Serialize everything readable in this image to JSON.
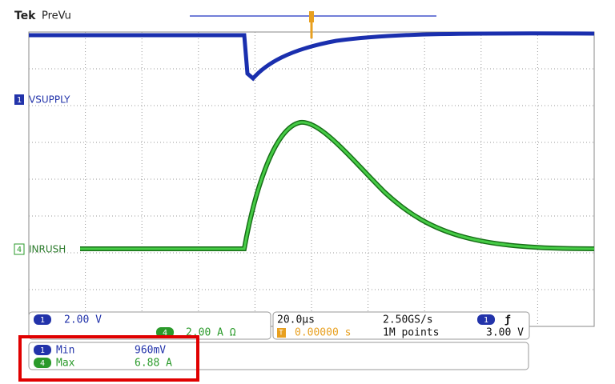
{
  "header": {
    "brand": "Tek",
    "mode": "PreVu"
  },
  "channels": [
    {
      "number": "1",
      "label": "VSUPPLY",
      "scale": "2.00 V"
    },
    {
      "number": "4",
      "label": "INRUSH",
      "scale": "2.00 A Ω"
    }
  ],
  "timebase": {
    "scale": "20.0µs",
    "sample_rate": "2.50GS/s",
    "trigger_marker": "T",
    "position": "0.00000 s",
    "record_length": "1M points"
  },
  "trigger": {
    "channel": "1",
    "slope": "ƒ",
    "level": "3.00 V"
  },
  "measurements": [
    {
      "channel": "1",
      "name": "Min",
      "value": "960mV"
    },
    {
      "channel": "4",
      "name": "Max",
      "value": "6.88 A"
    }
  ]
}
